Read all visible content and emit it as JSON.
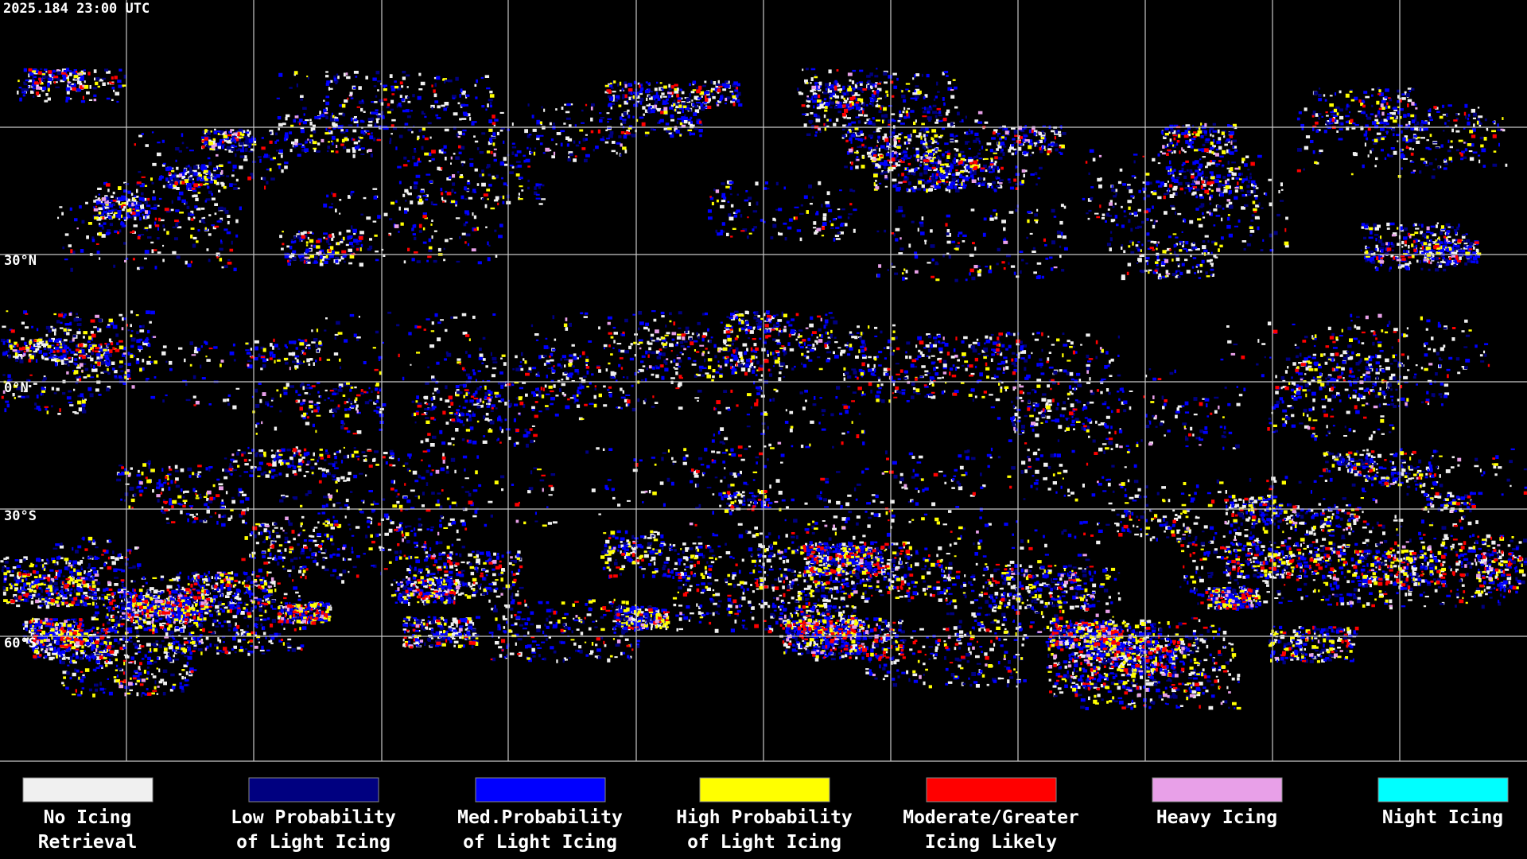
{
  "header": {
    "timestamp": "2025.184 23:00 UTC"
  },
  "map": {
    "lat_labels": [
      "30°N",
      "0°N",
      "30°S",
      "60°S"
    ]
  },
  "legend": [
    {
      "color": "#f0f0f0",
      "lines": [
        "No Icing",
        "Retrieval"
      ]
    },
    {
      "color": "#000080",
      "lines": [
        "Low Probability",
        "of Light Icing"
      ]
    },
    {
      "color": "#0000ff",
      "lines": [
        "Med.Probability",
        "of Light Icing"
      ]
    },
    {
      "color": "#ffff00",
      "lines": [
        "High Probability",
        "of Light Icing"
      ]
    },
    {
      "color": "#ff0000",
      "lines": [
        "Moderate/Greater",
        "Icing Likely"
      ]
    },
    {
      "color": "#e8a0e8",
      "lines": [
        "Heavy Icing"
      ]
    },
    {
      "color": "#00ffff",
      "lines": [
        "Night Icing"
      ]
    }
  ]
}
